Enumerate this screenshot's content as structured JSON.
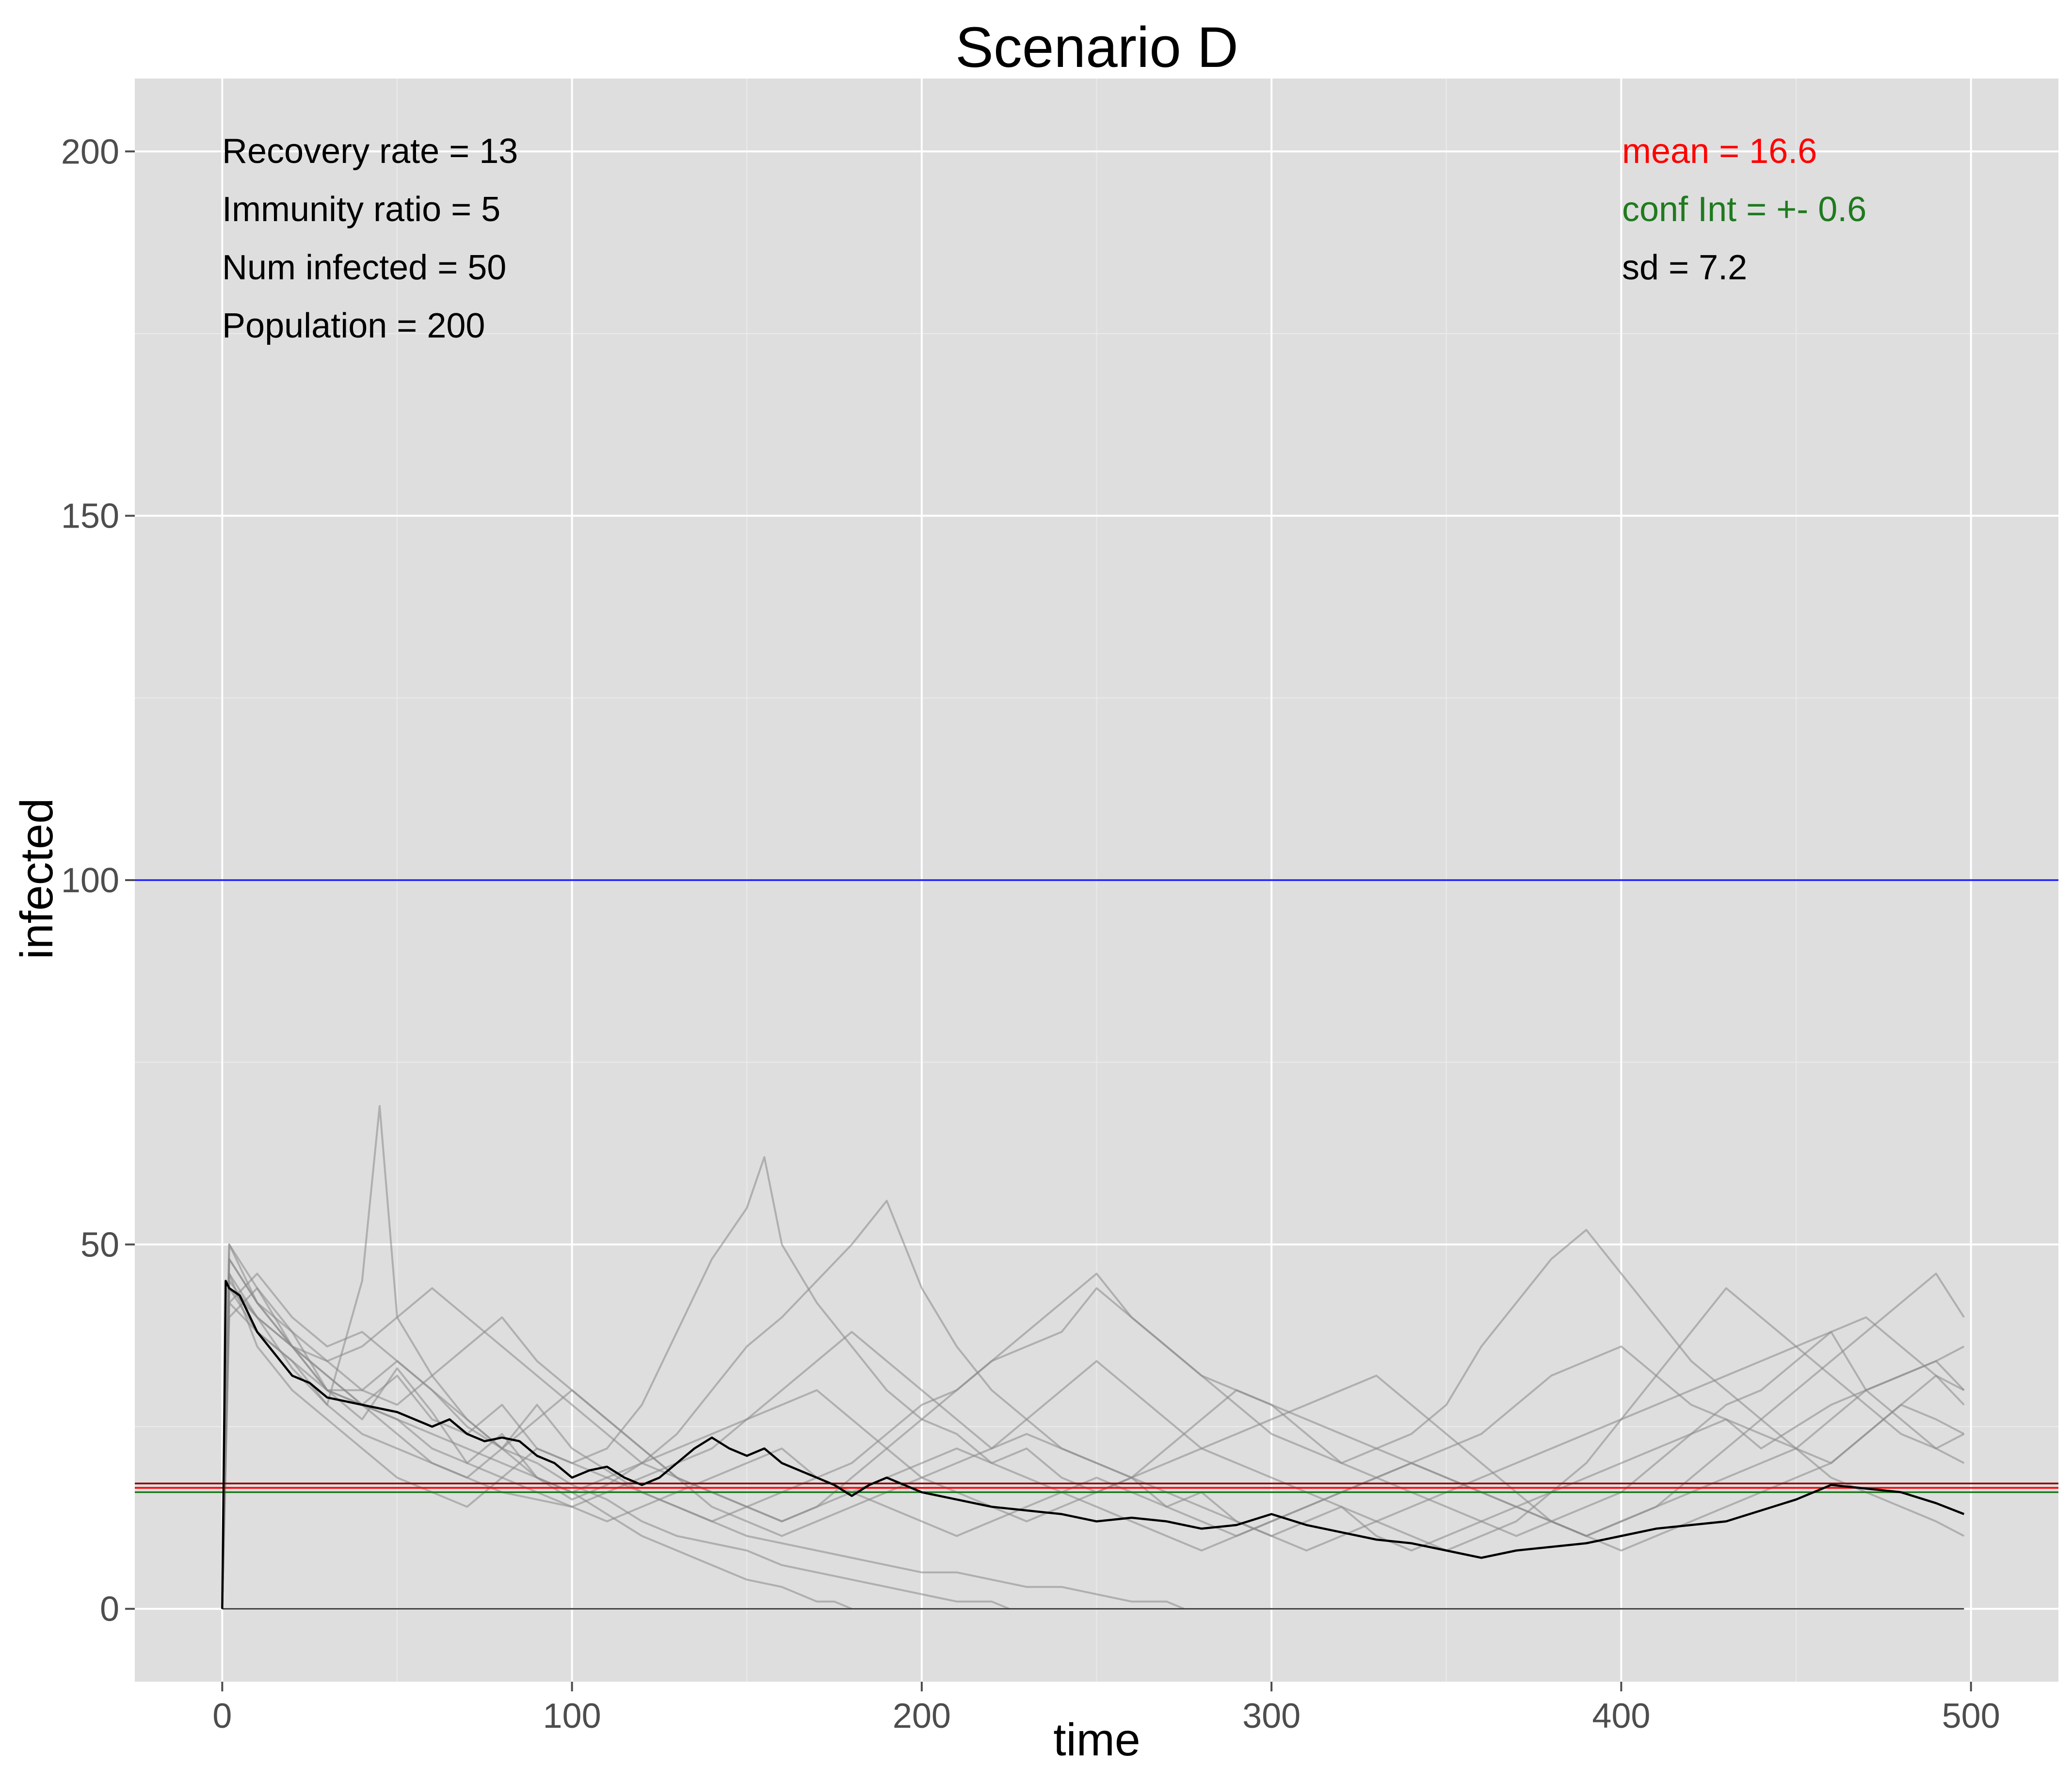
{
  "chart_data": {
    "type": "line",
    "title": "Scenario D",
    "xlabel": "time",
    "ylabel": "infected",
    "xlim": [
      -25,
      525
    ],
    "ylim": [
      -10,
      210
    ],
    "x_ticks": [
      0,
      100,
      200,
      300,
      400,
      500
    ],
    "x_tick_labels": [
      "0",
      "100",
      "200",
      "300",
      "400",
      "500"
    ],
    "y_ticks": [
      0,
      50,
      100,
      150,
      200
    ],
    "y_tick_labels": [
      "0",
      "50",
      "100",
      "150",
      "200"
    ],
    "grid": true,
    "background": "#dedede",
    "params_text": [
      "Recovery rate = 13",
      "Immunity ratio = 5",
      "Num infected = 50",
      "Population = 200"
    ],
    "stats_text": [
      {
        "text": "mean = 16.6",
        "color": "#ff0000"
      },
      {
        "text": "conf Int = +- 0.6",
        "color": "#1f7a1f"
      },
      {
        "text": "sd = 7.2",
        "color": "#000000"
      }
    ],
    "hlines": [
      {
        "y": 100,
        "color": "#1a1aff"
      },
      {
        "y": 17.2,
        "color": "#8b0000"
      },
      {
        "y": 16.6,
        "color": "#ff0000"
      },
      {
        "y": 16.0,
        "color": "#1f7a1f"
      }
    ],
    "runs_color": "#888888",
    "mean_color": "#000000",
    "runs": [
      {
        "x": [
          0,
          2,
          10,
          20,
          30,
          40,
          50,
          60,
          70,
          80,
          90,
          100,
          110,
          120,
          130,
          140,
          150,
          160,
          170,
          175,
          180
        ],
        "y": [
          0,
          48,
          42,
          38,
          30,
          26,
          33,
          27,
          20,
          24,
          18,
          16,
          13,
          10,
          8,
          6,
          4,
          3,
          1,
          1,
          0
        ]
      },
      {
        "x": [
          0,
          2,
          10,
          20,
          30,
          40,
          45,
          50,
          60,
          70,
          80,
          90,
          100,
          110,
          120,
          130,
          140,
          150,
          160,
          170,
          180,
          190,
          200,
          210,
          220,
          225
        ],
        "y": [
          0,
          45,
          40,
          33,
          28,
          45,
          69,
          40,
          32,
          26,
          22,
          20,
          17,
          15,
          12,
          10,
          9,
          8,
          6,
          5,
          4,
          3,
          2,
          1,
          1,
          0
        ]
      },
      {
        "x": [
          0,
          2,
          10,
          20,
          30,
          40,
          50,
          60,
          70,
          80,
          90,
          100,
          110,
          120,
          130,
          140,
          150,
          160,
          170,
          180,
          190,
          200,
          210,
          220,
          230,
          240,
          250,
          260,
          270,
          275
        ],
        "y": [
          0,
          50,
          44,
          36,
          30,
          30,
          34,
          30,
          25,
          22,
          28,
          22,
          19,
          16,
          14,
          12,
          10,
          9,
          8,
          7,
          6,
          5,
          5,
          4,
          3,
          3,
          2,
          1,
          1,
          0
        ]
      },
      {
        "x": [
          0,
          2,
          10,
          20,
          30,
          40,
          50,
          60,
          70,
          80,
          90,
          100,
          110,
          120,
          130,
          140,
          150,
          155,
          160,
          170,
          180,
          190,
          200,
          210,
          220,
          230,
          240,
          250,
          260,
          270,
          280,
          290,
          300,
          310,
          320,
          330,
          340,
          350,
          360,
          370,
          380,
          390,
          400,
          410,
          420,
          430,
          440,
          450,
          460,
          470,
          480,
          490,
          498
        ],
        "y": [
          0,
          46,
          40,
          36,
          30,
          28,
          32,
          26,
          24,
          28,
          22,
          20,
          22,
          28,
          38,
          48,
          55,
          62,
          50,
          42,
          36,
          30,
          26,
          24,
          20,
          22,
          18,
          16,
          18,
          14,
          16,
          12,
          10,
          12,
          14,
          10,
          8,
          10,
          12,
          14,
          16,
          18,
          20,
          22,
          24,
          26,
          22,
          25,
          28,
          30,
          32,
          34,
          36
        ]
      },
      {
        "x": [
          0,
          2,
          10,
          20,
          30,
          40,
          50,
          60,
          70,
          80,
          90,
          100,
          110,
          120,
          130,
          140,
          150,
          160,
          170,
          180,
          190,
          200,
          210,
          220,
          230,
          240,
          250,
          260,
          270,
          280,
          290,
          300,
          310,
          320,
          330,
          340,
          350,
          360,
          370,
          380,
          390,
          400,
          410,
          420,
          430,
          440,
          450,
          460,
          470,
          480,
          490,
          498
        ],
        "y": [
          0,
          42,
          46,
          40,
          36,
          38,
          34,
          30,
          26,
          22,
          18,
          15,
          17,
          20,
          24,
          30,
          36,
          40,
          45,
          50,
          56,
          44,
          36,
          30,
          26,
          22,
          20,
          18,
          22,
          26,
          30,
          28,
          24,
          20,
          18,
          16,
          14,
          12,
          10,
          12,
          14,
          16,
          20,
          24,
          28,
          30,
          34,
          38,
          30,
          26,
          22,
          20
        ]
      },
      {
        "x": [
          0,
          2,
          10,
          20,
          30,
          40,
          50,
          60,
          70,
          80,
          90,
          100,
          110,
          120,
          130,
          140,
          150,
          160,
          170,
          180,
          190,
          200,
          210,
          220,
          230,
          240,
          250,
          260,
          270,
          280,
          290,
          300,
          310,
          320,
          330,
          340,
          350,
          360,
          370,
          380,
          390,
          400,
          410,
          420,
          430,
          440,
          450,
          460,
          470,
          480,
          490,
          498
        ],
        "y": [
          0,
          40,
          44,
          38,
          34,
          36,
          40,
          44,
          40,
          36,
          32,
          28,
          24,
          20,
          18,
          16,
          14,
          12,
          14,
          18,
          22,
          26,
          30,
          34,
          36,
          38,
          44,
          40,
          36,
          32,
          30,
          28,
          26,
          24,
          22,
          20,
          18,
          16,
          14,
          12,
          10,
          12,
          14,
          16,
          18,
          20,
          22,
          26,
          30,
          32,
          34,
          30
        ]
      },
      {
        "x": [
          0,
          2,
          10,
          20,
          30,
          40,
          50,
          60,
          70,
          80,
          90,
          100,
          110,
          120,
          130,
          140,
          150,
          160,
          170,
          180,
          190,
          200,
          210,
          220,
          230,
          240,
          250,
          260,
          270,
          280,
          290,
          300,
          310,
          320,
          330,
          340,
          350,
          360,
          370,
          380,
          390,
          400,
          410,
          420,
          430,
          440,
          450,
          460,
          470,
          480,
          490,
          498
        ],
        "y": [
          0,
          44,
          38,
          34,
          28,
          24,
          22,
          20,
          18,
          16,
          15,
          14,
          16,
          18,
          20,
          22,
          26,
          30,
          34,
          38,
          34,
          30,
          26,
          22,
          26,
          30,
          34,
          30,
          26,
          22,
          20,
          18,
          16,
          14,
          12,
          10,
          8,
          10,
          12,
          16,
          20,
          26,
          32,
          38,
          44,
          40,
          36,
          32,
          28,
          24,
          22,
          24
        ]
      },
      {
        "x": [
          0,
          2,
          10,
          20,
          30,
          40,
          50,
          60,
          70,
          80,
          90,
          100,
          110,
          120,
          130,
          140,
          150,
          160,
          170,
          180,
          190,
          200,
          210,
          220,
          230,
          240,
          250,
          260,
          270,
          280,
          290,
          300,
          310,
          320,
          330,
          340,
          350,
          360,
          370,
          380,
          390,
          400,
          410,
          420,
          430,
          440,
          450,
          460,
          470,
          480,
          490,
          498
        ],
        "y": [
          0,
          48,
          42,
          36,
          32,
          28,
          26,
          22,
          20,
          18,
          16,
          14,
          12,
          14,
          16,
          18,
          20,
          22,
          18,
          16,
          14,
          12,
          10,
          12,
          14,
          16,
          18,
          16,
          14,
          12,
          10,
          12,
          14,
          16,
          18,
          20,
          22,
          24,
          28,
          32,
          34,
          36,
          32,
          28,
          26,
          24,
          22,
          20,
          24,
          28,
          32,
          30
        ]
      },
      {
        "x": [
          0,
          2,
          10,
          20,
          30,
          40,
          50,
          60,
          70,
          80,
          90,
          100,
          110,
          120,
          130,
          140,
          150,
          160,
          170,
          180,
          190,
          200,
          210,
          220,
          230,
          240,
          250,
          260,
          270,
          280,
          290,
          300,
          310,
          320,
          330,
          340,
          350,
          360,
          370,
          380,
          390,
          400,
          410,
          420,
          430,
          440,
          450,
          460,
          470,
          480,
          490,
          498
        ],
        "y": [
          0,
          46,
          36,
          30,
          26,
          22,
          18,
          16,
          14,
          18,
          22,
          20,
          18,
          16,
          14,
          12,
          14,
          16,
          18,
          20,
          24,
          28,
          30,
          34,
          38,
          42,
          46,
          40,
          36,
          32,
          28,
          24,
          22,
          20,
          22,
          24,
          28,
          36,
          42,
          48,
          52,
          46,
          40,
          34,
          30,
          26,
          22,
          18,
          16,
          14,
          12,
          10
        ]
      },
      {
        "x": [
          0,
          2,
          10,
          20,
          30,
          40,
          50,
          60,
          70,
          80,
          90,
          100,
          110,
          120,
          130,
          140,
          150,
          160,
          170,
          180,
          190,
          200,
          210,
          220,
          230,
          240,
          250,
          260,
          270,
          280,
          290,
          300,
          310,
          320,
          330,
          340,
          350,
          360,
          370,
          380,
          390,
          400,
          410,
          420,
          430,
          440,
          450,
          460,
          470,
          480,
          490,
          498
        ],
        "y": [
          0,
          42,
          38,
          34,
          30,
          28,
          26,
          24,
          22,
          20,
          18,
          16,
          18,
          20,
          22,
          24,
          26,
          28,
          30,
          26,
          22,
          18,
          16,
          14,
          12,
          14,
          16,
          18,
          20,
          22,
          24,
          26,
          28,
          30,
          32,
          28,
          24,
          20,
          16,
          12,
          10,
          12,
          14,
          18,
          22,
          26,
          30,
          34,
          38,
          42,
          46,
          40
        ]
      },
      {
        "x": [
          0,
          2,
          10,
          20,
          30,
          40,
          50,
          60,
          70,
          80,
          90,
          100,
          110,
          120,
          130,
          140,
          150,
          160,
          170,
          180,
          190,
          200,
          210,
          220,
          230,
          240,
          250,
          260,
          270,
          280,
          290,
          300,
          310,
          320,
          330,
          340,
          350,
          360,
          370,
          380,
          390,
          400,
          410,
          420,
          430,
          440,
          450,
          460,
          470,
          480,
          490,
          498
        ],
        "y": [
          0,
          44,
          40,
          36,
          34,
          30,
          28,
          32,
          36,
          40,
          34,
          30,
          26,
          22,
          18,
          16,
          14,
          12,
          14,
          16,
          18,
          20,
          22,
          20,
          18,
          16,
          14,
          12,
          10,
          8,
          10,
          12,
          14,
          16,
          18,
          20,
          18,
          16,
          14,
          12,
          10,
          8,
          10,
          12,
          14,
          16,
          18,
          20,
          24,
          28,
          26,
          24
        ]
      },
      {
        "x": [
          0,
          2,
          10,
          20,
          30,
          40,
          50,
          60,
          70,
          80,
          90,
          100,
          110,
          120,
          130,
          140,
          150,
          160,
          170,
          180,
          190,
          200,
          210,
          220,
          230,
          240,
          250,
          260,
          270,
          280,
          290,
          300,
          310,
          320,
          330,
          340,
          350,
          360,
          370,
          380,
          390,
          400,
          410,
          420,
          430,
          440,
          450,
          460,
          470,
          480,
          490,
          498
        ],
        "y": [
          0,
          50,
          42,
          36,
          32,
          28,
          24,
          20,
          18,
          22,
          26,
          30,
          26,
          22,
          18,
          14,
          12,
          10,
          12,
          14,
          16,
          18,
          20,
          22,
          24,
          22,
          20,
          18,
          16,
          14,
          12,
          10,
          8,
          10,
          12,
          14,
          16,
          18,
          20,
          22,
          24,
          26,
          28,
          30,
          32,
          34,
          36,
          38,
          40,
          36,
          32,
          28
        ]
      }
    ],
    "mean_series": {
      "x": [
        0,
        1,
        2,
        5,
        10,
        15,
        20,
        25,
        30,
        35,
        40,
        45,
        50,
        55,
        60,
        65,
        70,
        75,
        80,
        85,
        90,
        95,
        100,
        105,
        110,
        115,
        120,
        125,
        130,
        135,
        140,
        145,
        150,
        155,
        160,
        165,
        170,
        175,
        180,
        185,
        190,
        195,
        200,
        210,
        220,
        230,
        240,
        250,
        260,
        270,
        280,
        290,
        300,
        310,
        320,
        330,
        340,
        350,
        360,
        370,
        380,
        390,
        400,
        410,
        420,
        430,
        440,
        450,
        460,
        470,
        480,
        490,
        498
      ],
      "y": [
        0,
        45,
        44,
        43,
        38,
        35,
        32,
        31,
        29,
        28.5,
        28,
        27.5,
        27,
        26,
        25,
        26,
        24,
        23,
        23.5,
        23,
        21,
        20,
        18,
        19,
        19.5,
        18,
        17,
        18,
        20,
        22,
        23.5,
        22,
        21,
        22,
        20,
        19,
        18,
        17,
        15.5,
        17,
        18,
        17,
        16,
        15,
        14,
        13.5,
        13,
        12,
        12.5,
        12,
        11,
        11.5,
        13,
        11.5,
        10.5,
        9.5,
        9,
        8,
        7,
        8,
        8.5,
        9,
        10,
        11,
        11.5,
        12,
        13.5,
        15,
        17,
        16.5,
        16,
        14.5,
        13
      ]
    }
  }
}
